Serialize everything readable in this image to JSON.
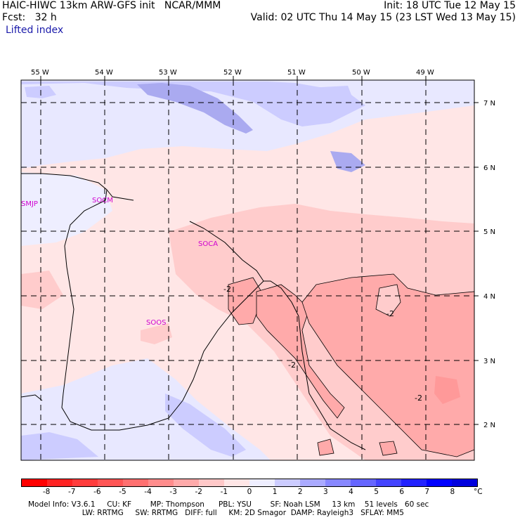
{
  "header": {
    "line1_left": "HAIC-HIWC 13km ARW-GFS init   NCAR/MMM",
    "line1_right": "Init: 18 UTC Tue 12 May 15",
    "line2_left": "Fcst:   32 h",
    "line2_right": "Valid: 02 UTC Thu 14 May 15 (23 LST Wed 13 May 15)",
    "field": "Lifted index"
  },
  "longitudes": [
    "55 W",
    "54 W",
    "53 W",
    "52 W",
    "51 W",
    "50 W",
    "49 W"
  ],
  "latitudes": [
    "7 N",
    "6 N",
    "5 N",
    "4 N",
    "3 N",
    "2 N"
  ],
  "stations": [
    "SMJP",
    "SOCM",
    "SOCA",
    "SOOS"
  ],
  "contour_labels": [
    "-2",
    "-2",
    "-2",
    "-2"
  ],
  "colorbar": {
    "ticks": [
      "-8",
      "-7",
      "-6",
      "-5",
      "-4",
      "-3",
      "-2",
      "-1",
      "0",
      "1",
      "2",
      "3",
      "4",
      "5",
      "6",
      "7",
      "8"
    ],
    "unit": "°C",
    "colors": [
      "#ff0000",
      "#ff2323",
      "#ff3c3c",
      "#ff5555",
      "#ff7070",
      "#ff8c8c",
      "#ffaaaa",
      "#ffc8c8",
      "#ffe6e6",
      "#eeeeff",
      "#ccccff",
      "#aaaaff",
      "#8888ff",
      "#6666ff",
      "#4444ff",
      "#2222ff",
      "#0000ff",
      "#0000dd"
    ]
  },
  "footer": {
    "line1": "Model Info: V3.6.1     CU: KF        MP: Thompson      PBL: YSU        SF: Noah LSM     13 km    51 levels   60 sec",
    "line2": "                       LW: RRTMG     SW: RRTMG   DIFF: full     KM: 2D Smagor  DAMP: Rayleigh3   SFLAY: MM5"
  },
  "palette": {
    "ocean_red_light": "#ffe8e8",
    "red_mid": "#ffcccc",
    "red_dark": "#ffaaaa",
    "blue_light": "#e6e6ff",
    "blue_mid": "#ccccff",
    "blue_dark": "#aaaaf0"
  }
}
